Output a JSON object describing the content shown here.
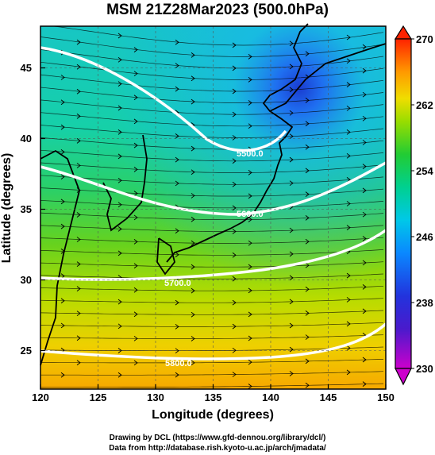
{
  "title": "MSM 21Z28Mar2023 (500.0hPa)",
  "xaxis": {
    "label": "Longitude (degrees)",
    "range": [
      120,
      150
    ],
    "ticks": [
      "120",
      "125",
      "130",
      "135",
      "140",
      "145",
      "150"
    ]
  },
  "yaxis": {
    "label": "Latitude  (degrees)",
    "range": [
      22.4,
      47.6
    ],
    "ticks": [
      "25",
      "30",
      "35",
      "40",
      "45"
    ]
  },
  "colorbar": {
    "range": [
      230,
      270
    ],
    "ticks": [
      "230",
      "238",
      "246",
      "254",
      "262",
      "270"
    ],
    "colors": [
      "#cc00cc",
      "#2a2acc",
      "#0088ff",
      "#00cccc",
      "#22cc44",
      "#99dd00",
      "#f0dd00",
      "#ff8800",
      "#ff2200"
    ]
  },
  "contours": [
    {
      "label": "5500.0"
    },
    {
      "label": "5600.0"
    },
    {
      "label": "5700.0"
    },
    {
      "label": "5800.0"
    }
  ],
  "credits": {
    "line1": "Drawing by DCL (https://www.gfd-dennou.org/library/dcl/)",
    "line2": "Data from http://database.rish.kyoto-u.ac.jp/arch/jmadata/"
  }
}
